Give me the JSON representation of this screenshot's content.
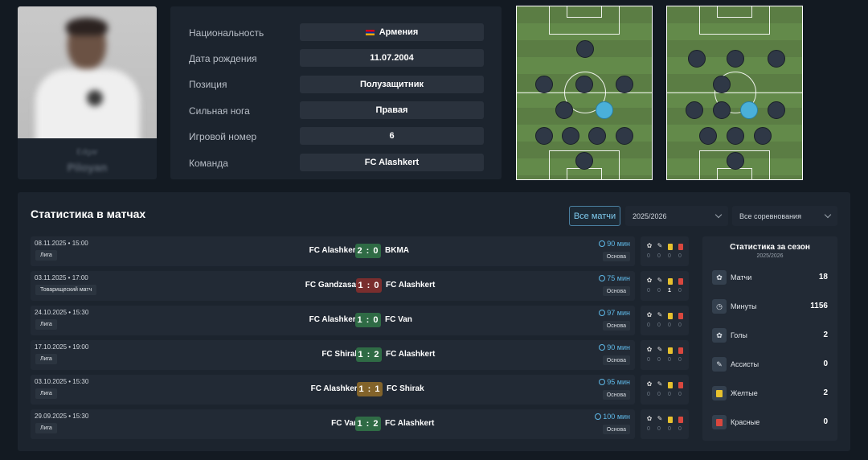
{
  "player": {
    "first_name": "Edgar",
    "last_name": "Piloyan"
  },
  "info": [
    {
      "label": "Национальность",
      "value": "Армения",
      "flag": true
    },
    {
      "label": "Дата рождения",
      "value": "11.07.2004"
    },
    {
      "label": "Позиция",
      "value": "Полузащитник"
    },
    {
      "label": "Сильная нога",
      "value": "Правая"
    },
    {
      "label": "Игровой номер",
      "value": "6"
    },
    {
      "label": "Команда",
      "value": "FC Alashkert"
    }
  ],
  "colors": {
    "highlight_player": "#4ab0d9",
    "win": "#2f6b45",
    "loss": "#7a2e2e",
    "draw": "#82632a",
    "accent": "#5fb9e8"
  },
  "stats": {
    "title": "Статистика в матчах",
    "filter_all": "Все матчи",
    "season_select": "2025/2026",
    "competition_select": "Все соревнования"
  },
  "matches": [
    {
      "date": "08.11.2025 • 15:00",
      "comp": "Лига",
      "home": "FC Alashkert",
      "away": "BKMA",
      "score": "2 : 0",
      "result": "win",
      "minutes": "90 мин",
      "role": "Основа",
      "stats": [
        "0",
        "0",
        "0",
        "0"
      ]
    },
    {
      "date": "03.11.2025 • 17:00",
      "comp": "Товарищеский матч",
      "home": "FC Gandzasar",
      "away": "FC Alashkert",
      "score": "1 : 0",
      "result": "loss",
      "minutes": "75 мин",
      "role": "Основа",
      "stats": [
        "0",
        "0",
        "1",
        "0"
      ]
    },
    {
      "date": "24.10.2025 • 15:30",
      "comp": "Лига",
      "home": "FC Alashkert",
      "away": "FC Van",
      "score": "1 : 0",
      "result": "win",
      "minutes": "97 мин",
      "role": "Основа",
      "stats": [
        "0",
        "0",
        "0",
        "0"
      ]
    },
    {
      "date": "17.10.2025 • 19:00",
      "comp": "Лига",
      "home": "FC Shirak",
      "away": "FC Alashkert",
      "score": "1 : 2",
      "result": "win",
      "minutes": "90 мин",
      "role": "Основа",
      "stats": [
        "0",
        "0",
        "0",
        "0"
      ]
    },
    {
      "date": "03.10.2025 • 15:30",
      "comp": "Лига",
      "home": "FC Alashkert",
      "away": "FC Shirak",
      "score": "1 : 1",
      "result": "draw",
      "minutes": "95 мин",
      "role": "Основа",
      "stats": [
        "0",
        "0",
        "0",
        "0"
      ]
    },
    {
      "date": "29.09.2025 • 15:30",
      "comp": "Лига",
      "home": "FC Van",
      "away": "FC Alashkert",
      "score": "1 : 2",
      "result": "win",
      "minutes": "100 мин",
      "role": "Основа",
      "stats": [
        "0",
        "0",
        "0",
        "0"
      ]
    }
  ],
  "season": {
    "title": "Статистика за сезон",
    "subtitle": "2025/2026",
    "rows": [
      {
        "icon": "ball-icon",
        "glyph": "✿",
        "label": "Матчи",
        "value": "18"
      },
      {
        "icon": "clock-icon",
        "glyph": "◷",
        "label": "Минуты",
        "value": "1156"
      },
      {
        "icon": "goal-icon",
        "glyph": "✿",
        "label": "Голы",
        "value": "2"
      },
      {
        "icon": "assist-icon",
        "glyph": "✎",
        "label": "Ассисты",
        "value": "0"
      },
      {
        "icon": "yellow-card-icon",
        "glyph": "",
        "label": "Желтые",
        "value": "2"
      },
      {
        "icon": "red-card-icon",
        "glyph": "",
        "label": "Красные",
        "value": "0"
      }
    ]
  }
}
